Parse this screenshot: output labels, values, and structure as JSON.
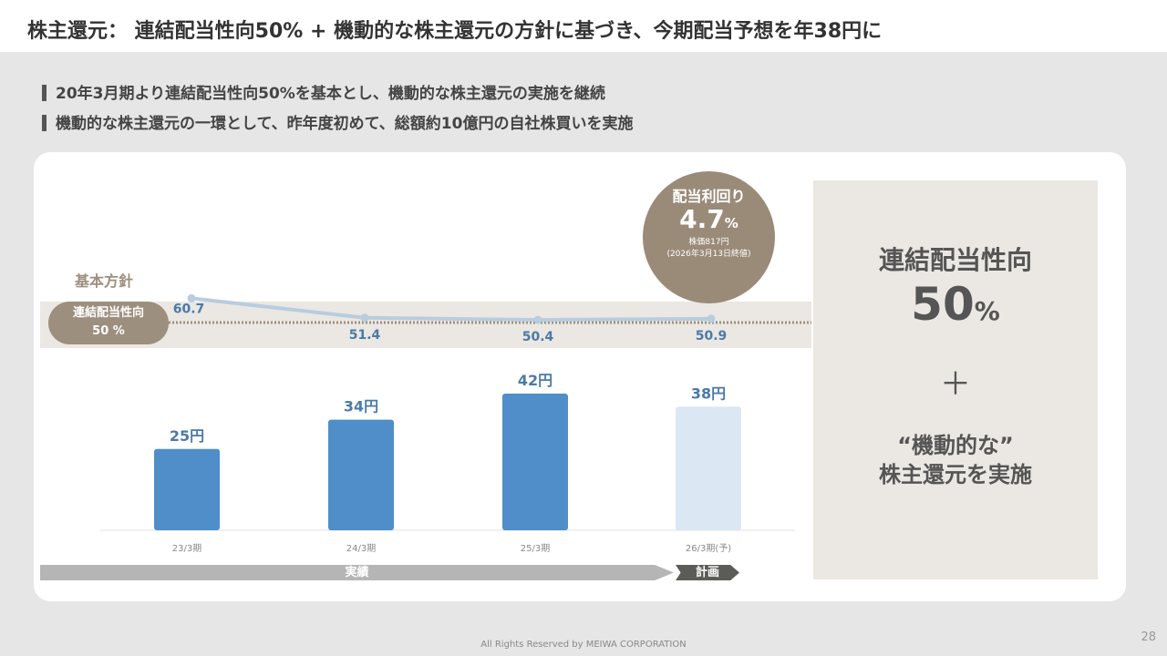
{
  "header": {
    "title": "株主還元： 連結配当性向50% + 機動的な株主還元の方針に基づき、今期配当予想を年38円に"
  },
  "bullets": [
    "20年3月期より連結配当性向50%を基本とし、機動的な株主還元の実施を継続",
    "機動的な株主還元の一環として、昨年度初めて、総額約10億円の自社株買いを実施"
  ],
  "policy": {
    "label": "基本方針",
    "pill_line1": "連結配当性向",
    "pill_line2": "50 %"
  },
  "yield_badge": {
    "title": "配当利回り",
    "value": "4.7",
    "unit": "%",
    "price": "株価817円",
    "note": "(2026年3月13日終値)"
  },
  "right_panel": {
    "line1": "連結配当性向",
    "value": "50",
    "unit": "%",
    "plus": "＋",
    "line3": "“機動的な”",
    "line4": "株主還元を実施"
  },
  "timeline": {
    "actual": "実績",
    "plan": "計画"
  },
  "chart_data": {
    "type": "bar",
    "categories": [
      "23/3期",
      "24/3期",
      "25/3期",
      "26/3期(予)"
    ],
    "dividends": [
      25,
      34,
      42,
      38
    ],
    "dividend_labels": [
      "25円",
      "34円",
      "42円",
      "38円"
    ],
    "payout_ratio": [
      60.7,
      51.4,
      50.4,
      50.9
    ],
    "payout_labels": [
      "60.7",
      "51.4",
      "50.4",
      "50.9"
    ],
    "baseline_ratio": 50,
    "colors": {
      "actual": "#4f8ec8",
      "forecast": "#dbe7f3",
      "line": "#b7cde0",
      "label": "#4a7aa8"
    }
  },
  "footer": {
    "copyright": "All Rights Reserved by MEIWA CORPORATION",
    "page": "28"
  }
}
